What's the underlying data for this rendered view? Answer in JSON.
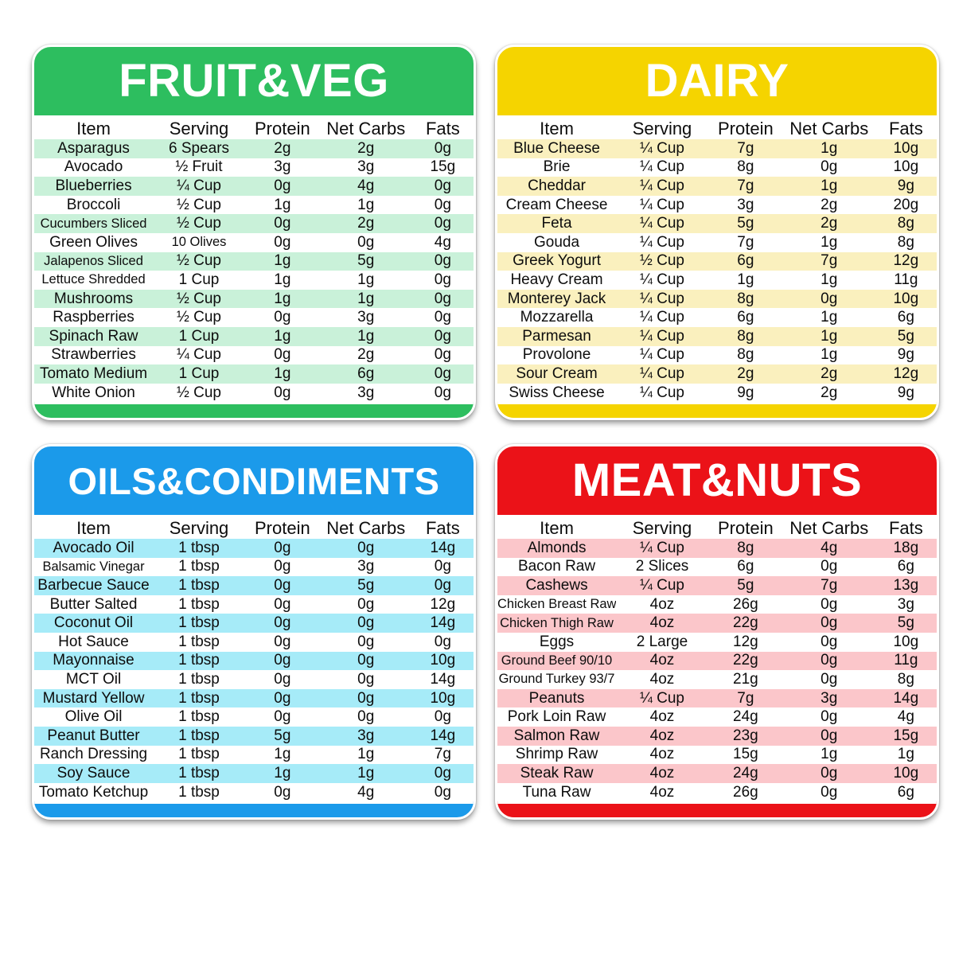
{
  "chart_data": [
    {
      "type": "table",
      "title": "FRUIT&VEG",
      "theme_color": "#2DBE5F",
      "stripe_color": "#C9F1D9",
      "columns": [
        "Item",
        "Serving",
        "Protein",
        "Net Carbs",
        "Fats"
      ],
      "rows": [
        [
          "Asparagus",
          "6 Spears",
          "2g",
          "2g",
          "0g"
        ],
        [
          "Avocado",
          "½ Fruit",
          "3g",
          "3g",
          "15g"
        ],
        [
          "Blueberries",
          "¼ Cup",
          "0g",
          "4g",
          "0g"
        ],
        [
          "Broccoli",
          "½ Cup",
          "1g",
          "1g",
          "0g"
        ],
        [
          "Cucumbers Sliced",
          "½ Cup",
          "0g",
          "2g",
          "0g"
        ],
        [
          "Green Olives",
          "10 Olives",
          "0g",
          "0g",
          "4g"
        ],
        [
          "Jalapenos Sliced",
          "½ Cup",
          "1g",
          "5g",
          "0g"
        ],
        [
          "Lettuce Shredded",
          "1 Cup",
          "1g",
          "1g",
          "0g"
        ],
        [
          "Mushrooms",
          "½ Cup",
          "1g",
          "1g",
          "0g"
        ],
        [
          "Raspberries",
          "½ Cup",
          "0g",
          "3g",
          "0g"
        ],
        [
          "Spinach Raw",
          "1 Cup",
          "1g",
          "1g",
          "0g"
        ],
        [
          "Strawberries",
          "¼ Cup",
          "0g",
          "2g",
          "0g"
        ],
        [
          "Tomato Medium",
          "1 Cup",
          "1g",
          "6g",
          "0g"
        ],
        [
          "White Onion",
          "½ Cup",
          "0g",
          "3g",
          "0g"
        ]
      ]
    },
    {
      "type": "table",
      "title": "DAIRY",
      "theme_color": "#F5D400",
      "stripe_color": "#FAF0BE",
      "columns": [
        "Item",
        "Serving",
        "Protein",
        "Net Carbs",
        "Fats"
      ],
      "rows": [
        [
          "Blue Cheese",
          "¼ Cup",
          "7g",
          "1g",
          "10g"
        ],
        [
          "Brie",
          "¼ Cup",
          "8g",
          "0g",
          "10g"
        ],
        [
          "Cheddar",
          "¼ Cup",
          "7g",
          "1g",
          "9g"
        ],
        [
          "Cream Cheese",
          "¼ Cup",
          "3g",
          "2g",
          "20g"
        ],
        [
          "Feta",
          "¼ Cup",
          "5g",
          "2g",
          "8g"
        ],
        [
          "Gouda",
          "¼ Cup",
          "7g",
          "1g",
          "8g"
        ],
        [
          "Greek Yogurt",
          "½ Cup",
          "6g",
          "7g",
          "12g"
        ],
        [
          "Heavy Cream",
          "¼ Cup",
          "1g",
          "1g",
          "11g"
        ],
        [
          "Monterey Jack",
          "¼ Cup",
          "8g",
          "0g",
          "10g"
        ],
        [
          "Mozzarella",
          "¼ Cup",
          "6g",
          "1g",
          "6g"
        ],
        [
          "Parmesan",
          "¼ Cup",
          "8g",
          "1g",
          "5g"
        ],
        [
          "Provolone",
          "¼ Cup",
          "8g",
          "1g",
          "9g"
        ],
        [
          "Sour Cream",
          "¼ Cup",
          "2g",
          "2g",
          "12g"
        ],
        [
          "Swiss Cheese",
          "¼ Cup",
          "9g",
          "2g",
          "9g"
        ]
      ]
    },
    {
      "type": "table",
      "title": "OILS&CONDIMENTS",
      "theme_color": "#1B9AEA",
      "stripe_color": "#A6EBF8",
      "columns": [
        "Item",
        "Serving",
        "Protein",
        "Net Carbs",
        "Fats"
      ],
      "rows": [
        [
          "Avocado Oil",
          "1 tbsp",
          "0g",
          "0g",
          "14g"
        ],
        [
          "Balsamic Vinegar",
          "1 tbsp",
          "0g",
          "3g",
          "0g"
        ],
        [
          "Barbecue Sauce",
          "1 tbsp",
          "0g",
          "5g",
          "0g"
        ],
        [
          "Butter Salted",
          "1 tbsp",
          "0g",
          "0g",
          "12g"
        ],
        [
          "Coconut Oil",
          "1 tbsp",
          "0g",
          "0g",
          "14g"
        ],
        [
          "Hot Sauce",
          "1 tbsp",
          "0g",
          "0g",
          "0g"
        ],
        [
          "Mayonnaise",
          "1 tbsp",
          "0g",
          "0g",
          "10g"
        ],
        [
          "MCT Oil",
          "1 tbsp",
          "0g",
          "0g",
          "14g"
        ],
        [
          "Mustard Yellow",
          "1 tbsp",
          "0g",
          "0g",
          "10g"
        ],
        [
          "Olive Oil",
          "1 tbsp",
          "0g",
          "0g",
          "0g"
        ],
        [
          "Peanut Butter",
          "1 tbsp",
          "5g",
          "3g",
          "14g"
        ],
        [
          "Ranch Dressing",
          "1 tbsp",
          "1g",
          "1g",
          "7g"
        ],
        [
          "Soy Sauce",
          "1 tbsp",
          "1g",
          "1g",
          "0g"
        ],
        [
          "Tomato Ketchup",
          "1 tbsp",
          "0g",
          "4g",
          "0g"
        ]
      ]
    },
    {
      "type": "table",
      "title": "MEAT&NUTS",
      "theme_color": "#EB1218",
      "stripe_color": "#FBC6CA",
      "columns": [
        "Item",
        "Serving",
        "Protein",
        "Net Carbs",
        "Fats"
      ],
      "rows": [
        [
          "Almonds",
          "¼ Cup",
          "8g",
          "4g",
          "18g"
        ],
        [
          "Bacon Raw",
          "2 Slices",
          "6g",
          "0g",
          "6g"
        ],
        [
          "Cashews",
          "¼ Cup",
          "5g",
          "7g",
          "13g"
        ],
        [
          "Chicken Breast Raw",
          "4oz",
          "26g",
          "0g",
          "3g"
        ],
        [
          "Chicken Thigh Raw",
          "4oz",
          "22g",
          "0g",
          "5g"
        ],
        [
          "Eggs",
          "2 Large",
          "12g",
          "0g",
          "10g"
        ],
        [
          "Ground Beef 90/10",
          "4oz",
          "22g",
          "0g",
          "11g"
        ],
        [
          "Ground Turkey 93/7",
          "4oz",
          "21g",
          "0g",
          "8g"
        ],
        [
          "Peanuts",
          "¼ Cup",
          "7g",
          "3g",
          "14g"
        ],
        [
          "Pork Loin Raw",
          "4oz",
          "24g",
          "0g",
          "4g"
        ],
        [
          "Salmon Raw",
          "4oz",
          "23g",
          "0g",
          "15g"
        ],
        [
          "Shrimp Raw",
          "4oz",
          "15g",
          "1g",
          "1g"
        ],
        [
          "Steak Raw",
          "4oz",
          "24g",
          "0g",
          "10g"
        ],
        [
          "Tuna Raw",
          "4oz",
          "26g",
          "0g",
          "6g"
        ]
      ]
    }
  ]
}
